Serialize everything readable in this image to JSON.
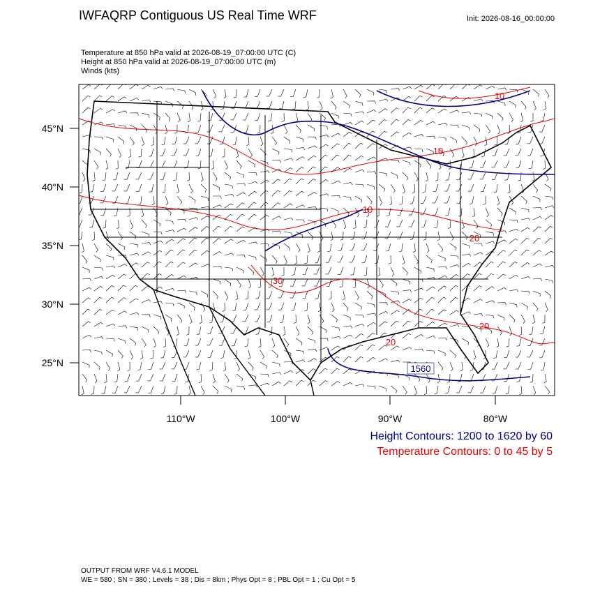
{
  "header": {
    "title": "IWFAQRP Contiguous US Real Time WRF",
    "init": "Init: 2026-08-16_00:00:00"
  },
  "subtitle": {
    "lines": [
      "Temperature at 850 hPa valid at 2026-08-19_07:00:00 UTC   (C)",
      "Height at 850 hPa valid at 2026-08-19_07:00:00 UTC   (m)",
      "Winds   (kts)"
    ]
  },
  "map": {
    "lat_labels": [
      "45°N",
      "40°N",
      "35°N",
      "30°N",
      "25°N"
    ],
    "lon_labels": [
      "110°W",
      "100°W",
      "90°W",
      "80°W"
    ],
    "temperature_labels": [
      "10",
      "10",
      "10",
      "20",
      "30",
      "20",
      "20"
    ],
    "height_labels": [
      "1560"
    ]
  },
  "legend": {
    "height": "Height Contours: 1200 to 1620 by 60",
    "temperature": "Temperature Contours: 0 to 45 by 5"
  },
  "footer": {
    "lines": [
      "OUTPUT FROM WRF V4.6.1 MODEL",
      "WE = 580 ; SN = 380 ; Levels = 38 ; Dis = 8km ; Phys Opt = 8 ; PBL Opt = 1 ; Cu Opt = 5"
    ]
  }
}
